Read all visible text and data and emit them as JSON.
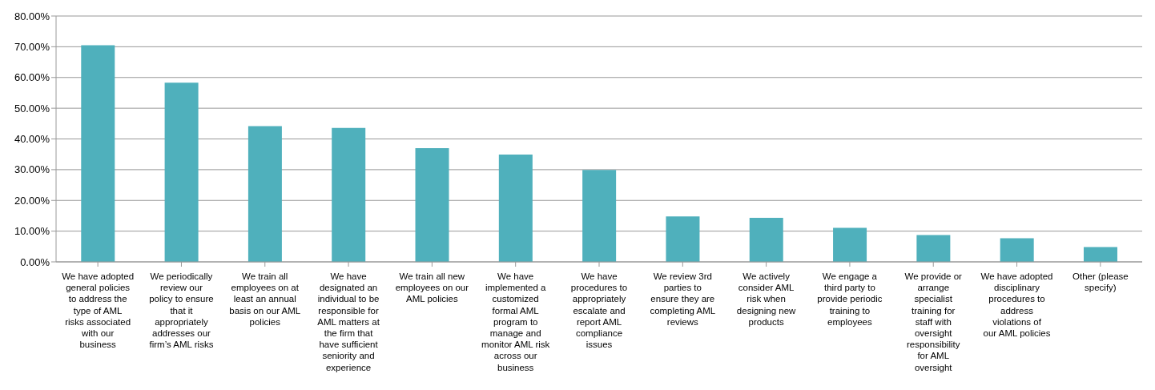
{
  "chart_data": {
    "type": "bar",
    "categories": [
      "We have adopted general policies to address the type of AML risks associated with our business",
      "We periodically review our policy to ensure that it appropriately addresses our firm’s AML risks",
      "We train all employees on at least an annual basis on our AML policies",
      "We have designated an individual to be responsible for AML matters at the firm that have sufficient seniority and experience",
      "We train all new employees on our AML policies",
      "We have implemented a customized formal AML program to manage and monitor AML risk across our business",
      "We have procedures to appropriately escalate and report AML compliance issues",
      "We review 3rd parties to ensure they are completing AML reviews",
      "We actively consider AML risk when designing new products",
      "We engage a third party to provide periodic training to employees",
      "We provide or arrange specialist training for staff with oversight responsibility for AML oversight",
      "We have adopted disciplinary procedures to address violations of our AML policies",
      "Other (please specify)"
    ],
    "values": [
      70.5,
      58.3,
      44.2,
      43.6,
      37.0,
      34.9,
      29.9,
      14.8,
      14.3,
      11.1,
      8.7,
      7.7,
      4.8
    ],
    "color": "#4fb0bc",
    "ylim": [
      0,
      80
    ],
    "yticks": [
      {
        "value": 0,
        "label": "0.00%"
      },
      {
        "value": 10,
        "label": "10.00%"
      },
      {
        "value": 20,
        "label": "20.00%"
      },
      {
        "value": 30,
        "label": "30.00%"
      },
      {
        "value": 40,
        "label": "40.00%"
      },
      {
        "value": 50,
        "label": "50.00%"
      },
      {
        "value": 60,
        "label": "60.00%"
      },
      {
        "value": 70,
        "label": "70.00%"
      },
      {
        "value": 80,
        "label": "80.00%"
      }
    ],
    "grid": "y",
    "legend": false
  }
}
